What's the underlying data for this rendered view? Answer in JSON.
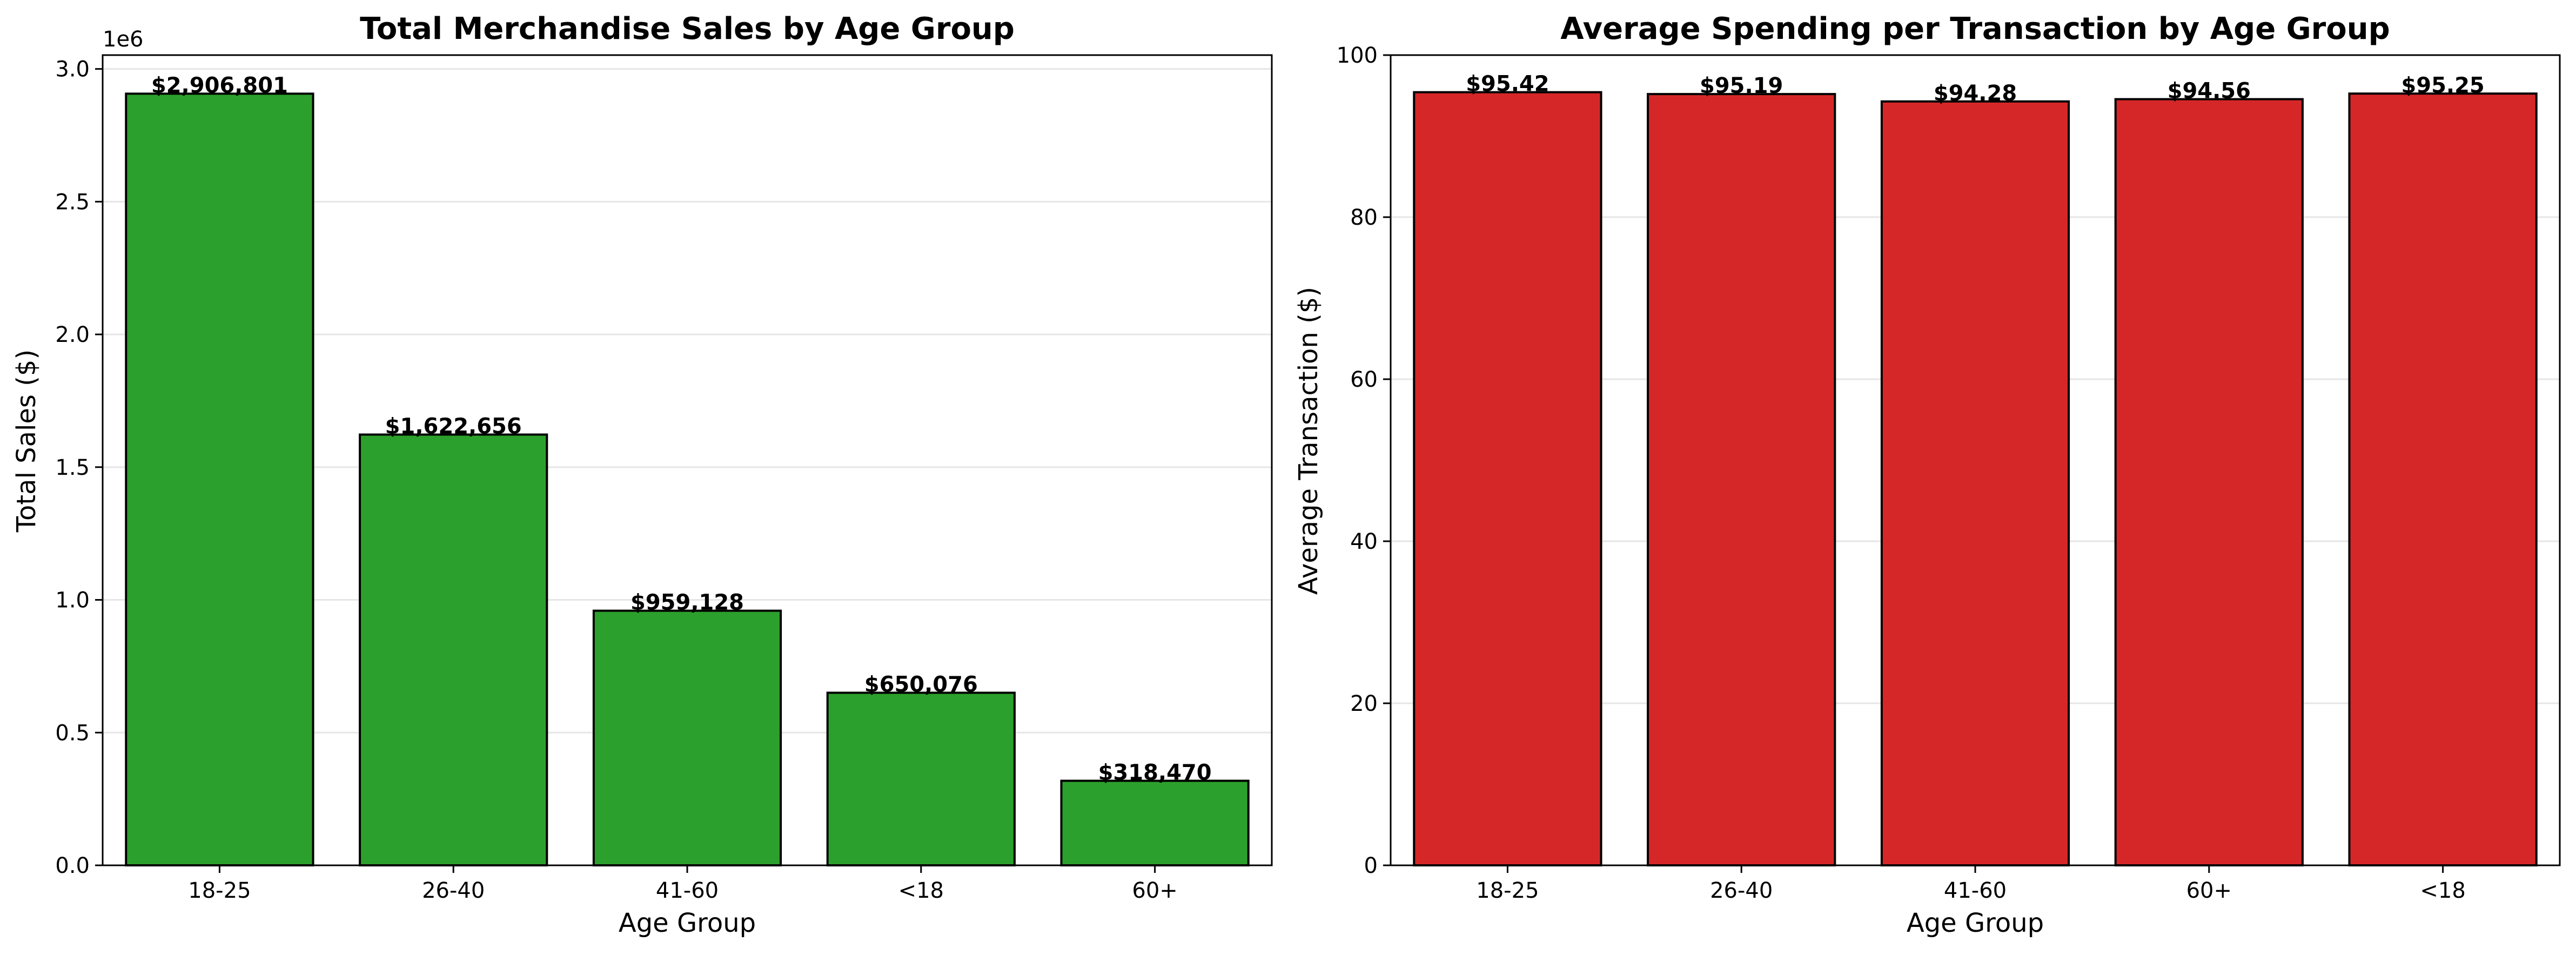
{
  "chart_data": [
    {
      "type": "bar",
      "title": "Total Merchandise Sales by Age Group",
      "xlabel": "Age Group",
      "ylabel": "Total Sales ($)",
      "y_offset_label": "1e6",
      "categories": [
        "18-25",
        "26-40",
        "41-60",
        "<18",
        "60+"
      ],
      "values": [
        2906801,
        1622656,
        959128,
        650076,
        318470
      ],
      "data_labels": [
        "$2,906,801",
        "$1,622,656",
        "$959,128",
        "$650,076",
        "$318,470"
      ],
      "ylim": [
        0,
        3052141
      ],
      "yticks": [
        0,
        500000,
        1000000,
        1500000,
        2000000,
        2500000,
        3000000
      ],
      "ytick_labels": [
        "0.0",
        "0.5",
        "1.0",
        "1.5",
        "2.0",
        "2.5",
        "3.0"
      ],
      "bar_color": "#2ca02c",
      "grid": "y"
    },
    {
      "type": "bar",
      "title": "Average Spending per Transaction by Age Group",
      "xlabel": "Age Group",
      "ylabel": "Average Transaction ($)",
      "categories": [
        "18-25",
        "26-40",
        "41-60",
        "60+",
        "<18"
      ],
      "values": [
        95.42,
        95.19,
        94.28,
        94.56,
        95.25
      ],
      "data_labels": [
        "$95.42",
        "$95.19",
        "$94.28",
        "$94.56",
        "$95.25"
      ],
      "ylim": [
        0,
        100
      ],
      "yticks": [
        0,
        20,
        40,
        60,
        80,
        100
      ],
      "ytick_labels": [
        "0",
        "20",
        "40",
        "60",
        "80",
        "100"
      ],
      "bar_color": "#d62728",
      "grid": "y"
    }
  ]
}
